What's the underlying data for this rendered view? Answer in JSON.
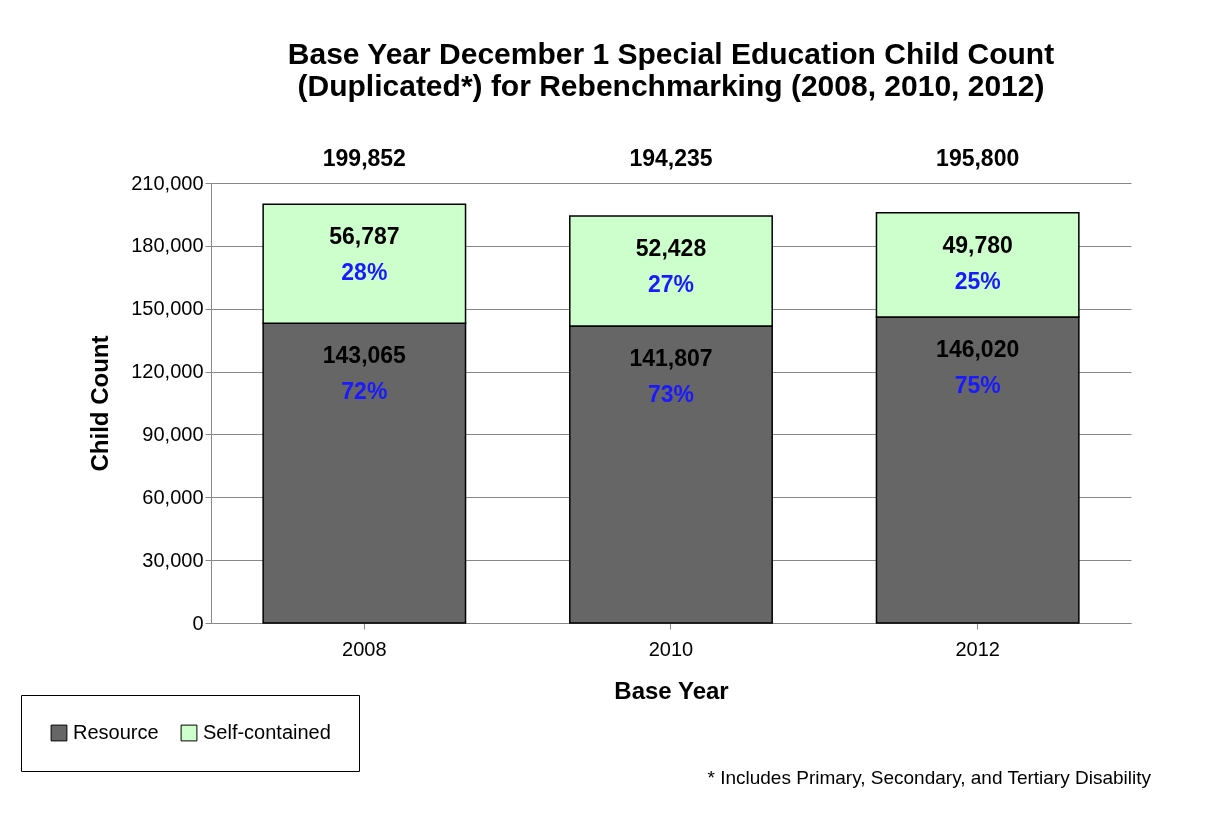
{
  "chart_data": {
    "type": "bar",
    "title": [
      "Base Year December 1 Special Education Child Count",
      "(Duplicated*) for Rebenchmarking (2008, 2010, 2012)"
    ],
    "xlabel": "Base Year",
    "ylabel": "Child Count",
    "categories": [
      "2008",
      "2010",
      "2012"
    ],
    "series": [
      {
        "name": "Resource",
        "color": "#666666",
        "values": [
          143065,
          141807,
          146020
        ],
        "value_labels": [
          "143,065\n72%",
          "141,807\n73%",
          "146,020\n75%"
        ]
      },
      {
        "name": "Self-contained",
        "color": "#ccffcc",
        "values": [
          56787,
          52428,
          49780
        ],
        "value_labels": [
          "56,787\n28%",
          "52,428\n27%",
          "49,780\n25%"
        ]
      }
    ],
    "stacked": true,
    "totals": [
      "199,852",
      "194,235",
      "195,800"
    ],
    "ylim": [
      0,
      210000
    ],
    "yticks": [
      0,
      {
        "value": 30000,
        "label": "30,000"
      },
      {
        "value": 60000,
        "label": "60,000"
      },
      {
        "value": 90000,
        "label": "90,000"
      },
      {
        "value": 120000,
        "label": "120,000"
      },
      {
        "value": 150000,
        "label": "150,000"
      },
      {
        "value": 180000,
        "label": "180,000"
      },
      {
        "value": 210000,
        "label": "210,000"
      }
    ],
    "grid": "y",
    "legend": "bottom left",
    "annotations": [
      "* Includes Primary, Secondary, and Tertiary Disability"
    ]
  }
}
